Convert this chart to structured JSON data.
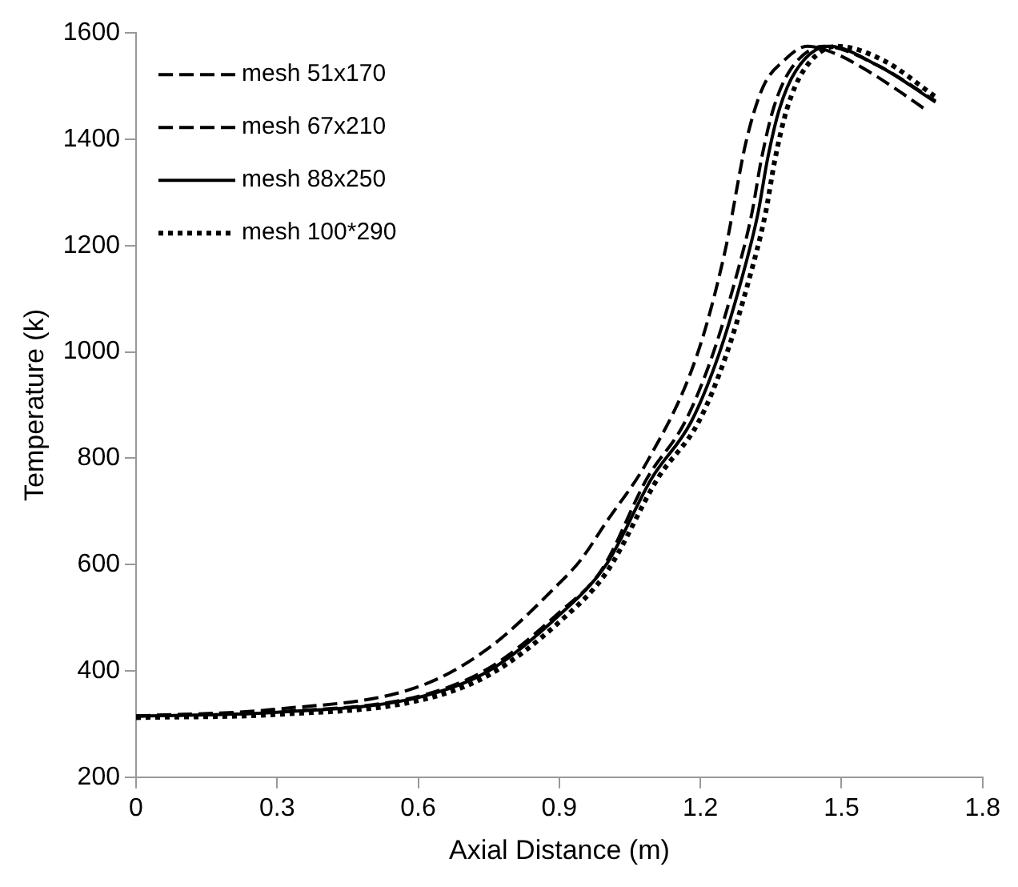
{
  "chart_data": {
    "type": "line",
    "xlabel": "Axial Distance (m)",
    "ylabel": "Temperature (k)",
    "xlim": [
      0,
      1.8
    ],
    "xticks": [
      0,
      0.3,
      0.6,
      0.9,
      1.2,
      1.5,
      1.8
    ],
    "ylim": [
      200,
      1600
    ],
    "yticks": [
      200,
      400,
      600,
      800,
      1000,
      1200,
      1400,
      1600
    ],
    "grid": false,
    "legend": "top left",
    "marker": "none",
    "series": [
      {
        "name": "mesh 51x170",
        "color": "#000000",
        "line_style": "dashed",
        "x": [
          0,
          0.3,
          0.6,
          0.75,
          0.9,
          0.945,
          1.0,
          1.087,
          1.192,
          1.252,
          1.297,
          1.333,
          1.38,
          1.427,
          1.49,
          1.555,
          1.62,
          1.68
        ],
        "values": [
          315,
          328,
          370,
          443,
          565,
          608,
          680,
          794,
          992,
          1188,
          1395,
          1498,
          1550,
          1575,
          1560,
          1529,
          1492,
          1455
        ]
      },
      {
        "name": "mesh 67x210",
        "color": "#000000",
        "line_style": "dashed",
        "x": [
          0,
          0.3,
          0.6,
          0.75,
          0.9,
          0.99,
          1.087,
          1.167,
          1.225,
          1.274,
          1.309,
          1.33,
          1.355,
          1.39,
          1.463,
          1.579,
          1.7
        ],
        "values": [
          315,
          323,
          352,
          405,
          510,
          590,
          763,
          868,
          992,
          1135,
          1259,
          1364,
          1457,
          1529,
          1575,
          1538,
          1472
        ]
      },
      {
        "name": "mesh 88x250",
        "color": "#000000",
        "line_style": "solid",
        "x": [
          0,
          0.3,
          0.6,
          0.75,
          0.9,
          1.0,
          1.097,
          1.18,
          1.238,
          1.287,
          1.322,
          1.343,
          1.368,
          1.403,
          1.473,
          1.579,
          1.7
        ],
        "values": [
          315,
          322,
          350,
          400,
          505,
          600,
          763,
          868,
          992,
          1135,
          1259,
          1364,
          1457,
          1529,
          1575,
          1538,
          1470
        ]
      },
      {
        "name": "mesh 100*290",
        "color": "#000000",
        "line_style": "dotted",
        "x": [
          0,
          0.3,
          0.6,
          0.75,
          0.9,
          1.0,
          1.11,
          1.196,
          1.254,
          1.303,
          1.338,
          1.359,
          1.384,
          1.419,
          1.49,
          1.59,
          1.7
        ],
        "values": [
          312,
          318,
          344,
          392,
          492,
          585,
          763,
          868,
          992,
          1135,
          1259,
          1364,
          1457,
          1529,
          1575,
          1548,
          1480
        ]
      }
    ]
  }
}
